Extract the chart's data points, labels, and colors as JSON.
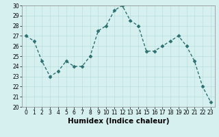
{
  "x": [
    0,
    1,
    2,
    3,
    4,
    5,
    6,
    7,
    8,
    9,
    10,
    11,
    12,
    13,
    14,
    15,
    16,
    17,
    18,
    19,
    20,
    21,
    22,
    23
  ],
  "y": [
    27,
    26.5,
    24.5,
    23,
    23.5,
    24.5,
    24,
    24,
    25,
    27.5,
    28,
    29.5,
    30,
    28.5,
    28,
    25.5,
    25.5,
    26,
    26.5,
    27,
    26,
    24.5,
    22,
    20.5
  ],
  "line_color": "#2d7070",
  "marker_color": "#2d7070",
  "bg_color": "#d6f0f0",
  "grid_color": "#b8dede",
  "xlabel": "Humidex (Indice chaleur)",
  "ylim": [
    20,
    30
  ],
  "xlim": [
    -0.5,
    23.5
  ],
  "yticks": [
    20,
    21,
    22,
    23,
    24,
    25,
    26,
    27,
    28,
    29,
    30
  ],
  "xticks": [
    0,
    1,
    2,
    3,
    4,
    5,
    6,
    7,
    8,
    9,
    10,
    11,
    12,
    13,
    14,
    15,
    16,
    17,
    18,
    19,
    20,
    21,
    22,
    23
  ],
  "tick_fontsize": 5.5,
  "label_fontsize": 7.5,
  "linewidth": 1.0,
  "markersize": 2.5
}
